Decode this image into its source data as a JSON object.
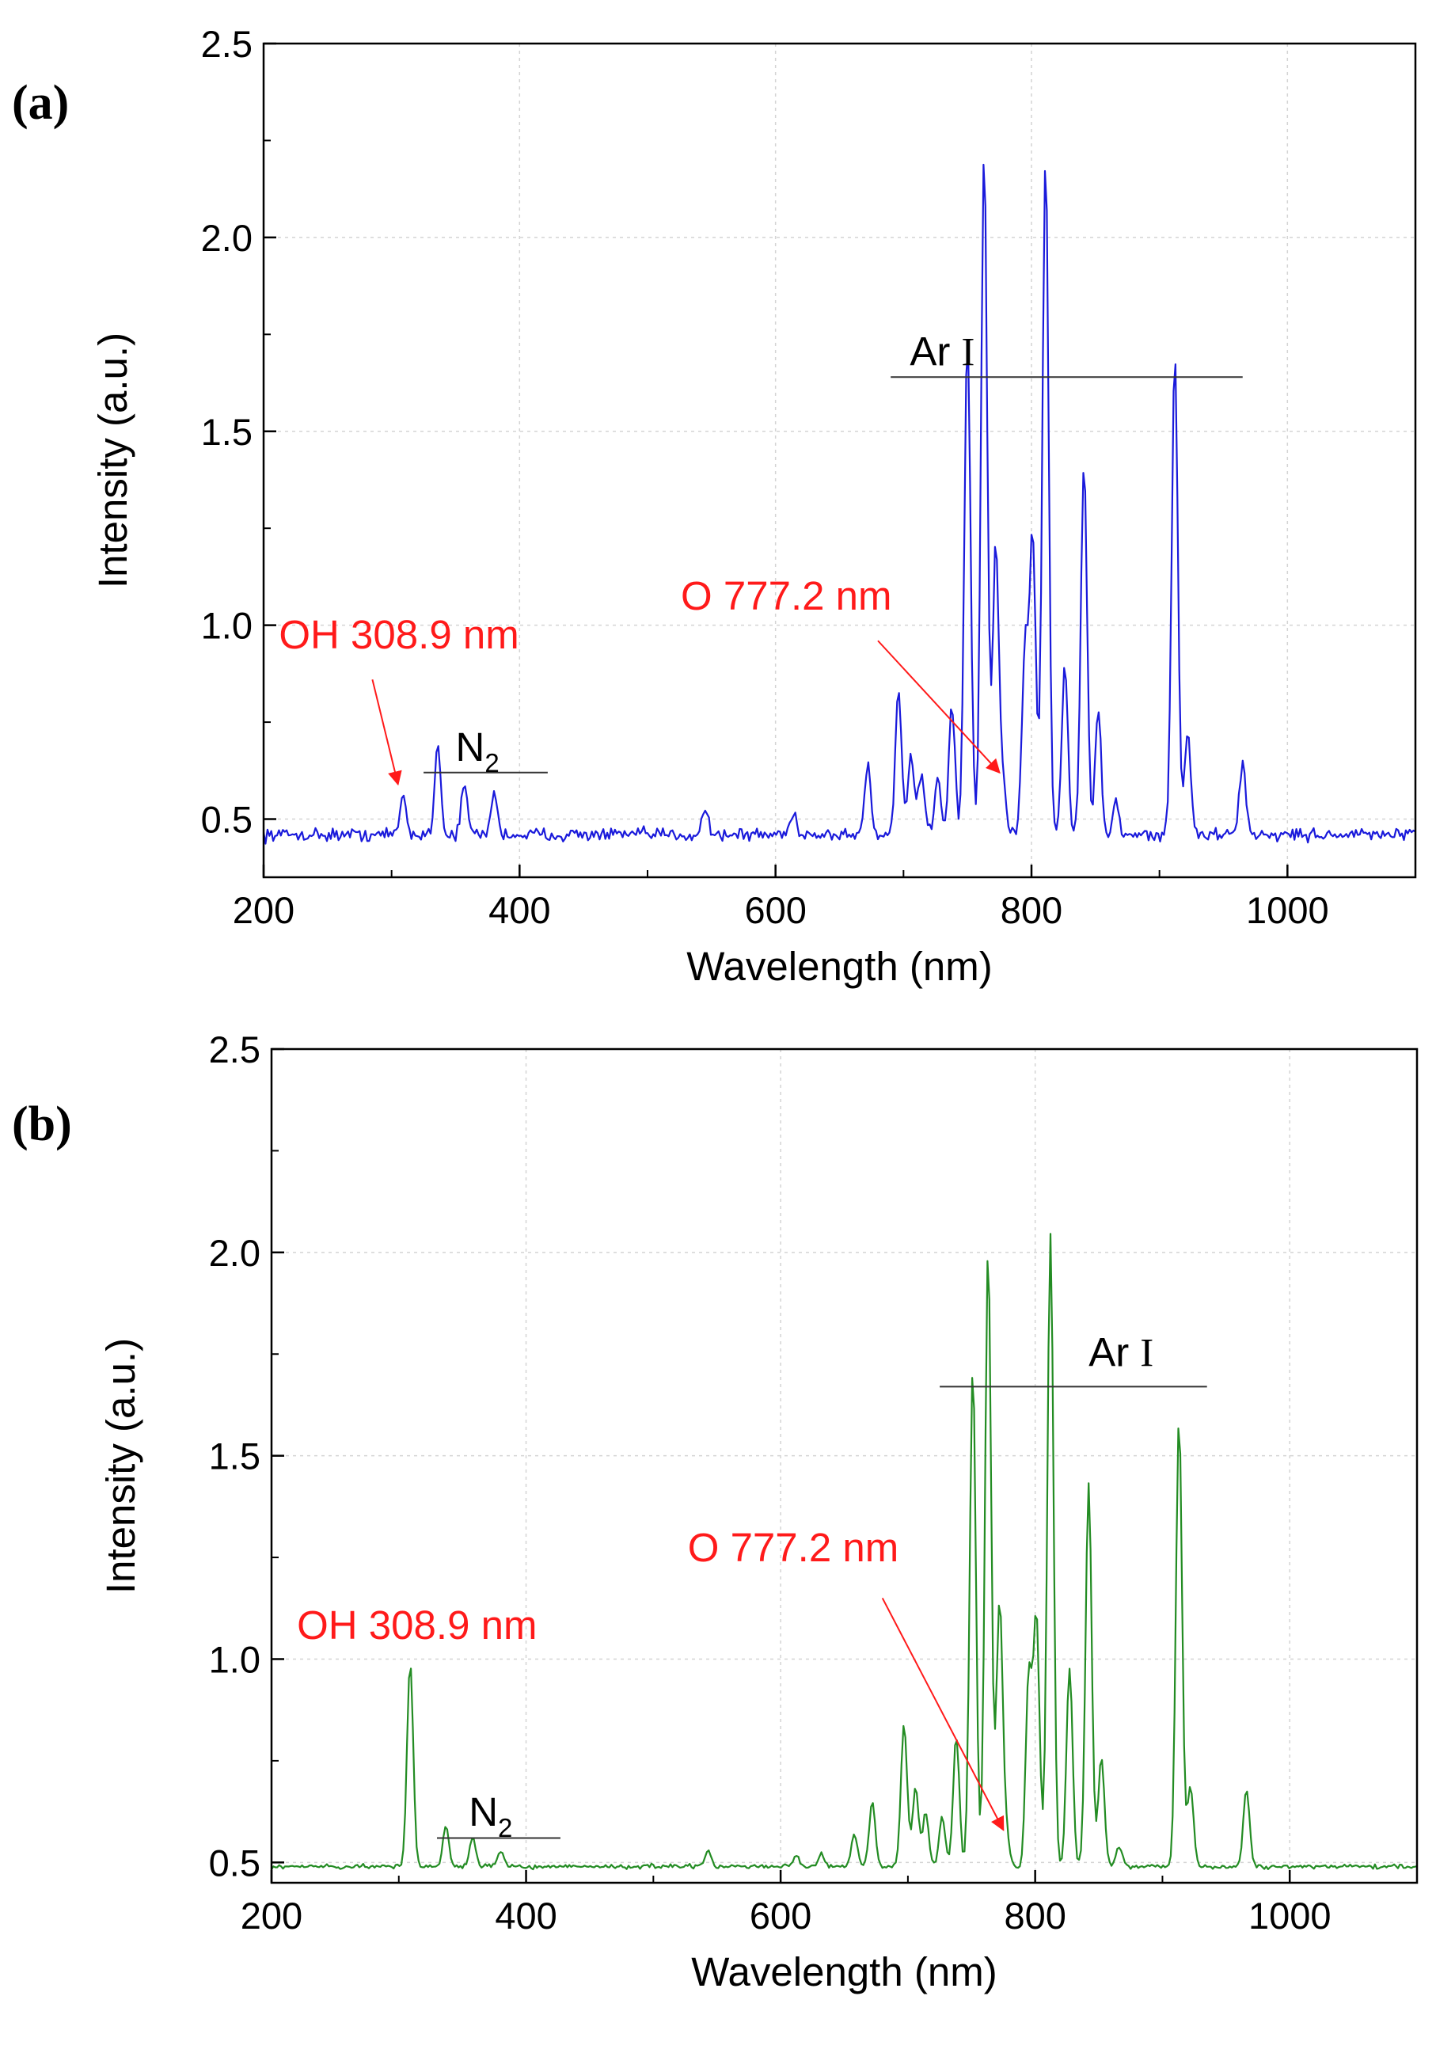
{
  "chart_data": [
    {
      "type": "line",
      "panel_label": "(a)",
      "xlabel": "Wavelength (nm)",
      "ylabel": "Intensity (a.u.)",
      "xlim": [
        200,
        1100
      ],
      "ylim": [
        0.35,
        2.5
      ],
      "xticks": [
        200,
        400,
        600,
        800,
        1000
      ],
      "xtick_labels": [
        "200",
        "400",
        "600",
        "800",
        "1000"
      ],
      "yticks": [
        0.5,
        1.0,
        1.5,
        2.0,
        2.5
      ],
      "ytick_labels": [
        "0.5",
        "1.0",
        "1.5",
        "2.0",
        "2.5"
      ],
      "grid": true,
      "line_color": "#1a1adb",
      "baseline": 0.46,
      "noise": 0.025,
      "peaks": [
        {
          "x": 308.9,
          "y": 0.56
        },
        {
          "x": 336,
          "y": 0.69
        },
        {
          "x": 357,
          "y": 0.59
        },
        {
          "x": 380,
          "y": 0.57
        },
        {
          "x": 545,
          "y": 0.53
        },
        {
          "x": 614,
          "y": 0.52
        },
        {
          "x": 672,
          "y": 0.64
        },
        {
          "x": 696,
          "y": 0.84
        },
        {
          "x": 706,
          "y": 0.66
        },
        {
          "x": 714,
          "y": 0.62
        },
        {
          "x": 727,
          "y": 0.6
        },
        {
          "x": 738,
          "y": 0.79
        },
        {
          "x": 750,
          "y": 1.76
        },
        {
          "x": 763,
          "y": 2.22
        },
        {
          "x": 772,
          "y": 1.19
        },
        {
          "x": 777.2,
          "y": 0.6
        },
        {
          "x": 795,
          "y": 0.95
        },
        {
          "x": 801,
          "y": 1.23
        },
        {
          "x": 811,
          "y": 2.21
        },
        {
          "x": 826,
          "y": 0.9
        },
        {
          "x": 841,
          "y": 1.42
        },
        {
          "x": 852,
          "y": 0.78
        },
        {
          "x": 866,
          "y": 0.55
        },
        {
          "x": 912,
          "y": 1.7
        },
        {
          "x": 922,
          "y": 0.72
        },
        {
          "x": 965,
          "y": 0.65
        }
      ],
      "annotations": {
        "ar": {
          "text": "Ar",
          "numeral": "I",
          "line_x": [
            690,
            965
          ],
          "line_y": 1.64,
          "text_x": 705,
          "text_y": 1.67
        },
        "n2": {
          "text": "N",
          "sub": "2",
          "line_x": [
            325,
            422
          ],
          "line_y": 0.62,
          "text_x": 350,
          "text_y": 0.65
        },
        "oh": {
          "text": "OH 308.9 nm",
          "text_x": 212,
          "text_y": 0.94,
          "arrow_from": [
            285,
            0.86
          ],
          "arrow_to": [
            305,
            0.59
          ]
        },
        "o": {
          "text": "O 777.2 nm",
          "text_x": 526,
          "text_y": 1.04,
          "arrow_from": [
            680,
            0.96
          ],
          "arrow_to": [
            775,
            0.62
          ]
        }
      }
    },
    {
      "type": "line",
      "panel_label": "(b)",
      "xlabel": "Wavelength (nm)",
      "ylabel": "Intensity (a.u.)",
      "xlim": [
        200,
        1100
      ],
      "ylim": [
        0.45,
        2.5
      ],
      "xticks": [
        200,
        400,
        600,
        800,
        1000
      ],
      "xtick_labels": [
        "200",
        "400",
        "600",
        "800",
        "1000"
      ],
      "yticks": [
        0.5,
        1.0,
        1.5,
        2.0,
        2.5
      ],
      "ytick_labels": [
        "0.5",
        "1.0",
        "1.5",
        "2.0",
        "2.5"
      ],
      "grid": true,
      "line_color": "#238c23",
      "baseline": 0.49,
      "noise": 0.008,
      "peaks": [
        {
          "x": 308.9,
          "y": 0.99
        },
        {
          "x": 337,
          "y": 0.59
        },
        {
          "x": 358,
          "y": 0.56
        },
        {
          "x": 380,
          "y": 0.53
        },
        {
          "x": 543,
          "y": 0.53
        },
        {
          "x": 612,
          "y": 0.52
        },
        {
          "x": 632,
          "y": 0.52
        },
        {
          "x": 658,
          "y": 0.57
        },
        {
          "x": 672,
          "y": 0.65
        },
        {
          "x": 697,
          "y": 0.84
        },
        {
          "x": 706,
          "y": 0.68
        },
        {
          "x": 714,
          "y": 0.62
        },
        {
          "x": 727,
          "y": 0.61
        },
        {
          "x": 738,
          "y": 0.81
        },
        {
          "x": 751,
          "y": 1.72
        },
        {
          "x": 763,
          "y": 2.01
        },
        {
          "x": 772,
          "y": 1.14
        },
        {
          "x": 777.2,
          "y": 0.57
        },
        {
          "x": 795,
          "y": 0.96
        },
        {
          "x": 801,
          "y": 1.1
        },
        {
          "x": 812,
          "y": 2.04
        },
        {
          "x": 827,
          "y": 0.98
        },
        {
          "x": 842,
          "y": 1.43
        },
        {
          "x": 852,
          "y": 0.76
        },
        {
          "x": 866,
          "y": 0.54
        },
        {
          "x": 913,
          "y": 1.59
        },
        {
          "x": 922,
          "y": 0.69
        },
        {
          "x": 966,
          "y": 0.68
        }
      ],
      "annotations": {
        "ar": {
          "text": "Ar",
          "numeral": "I",
          "line_x": [
            725,
            935
          ],
          "line_y": 1.67,
          "text_x": 842,
          "text_y": 1.72
        },
        "n2": {
          "text": "N",
          "sub": "2",
          "line_x": [
            330,
            427
          ],
          "line_y": 0.56,
          "text_x": 355,
          "text_y": 0.59
        },
        "oh": {
          "text": "OH 308.9 nm",
          "text_x": 220,
          "text_y": 1.05,
          "arrow_from": null,
          "arrow_to": null
        },
        "o": {
          "text": "O 777.2 nm",
          "text_x": 527,
          "text_y": 1.24,
          "arrow_from": [
            680,
            1.15
          ],
          "arrow_to": [
            775,
            0.58
          ]
        }
      }
    }
  ]
}
